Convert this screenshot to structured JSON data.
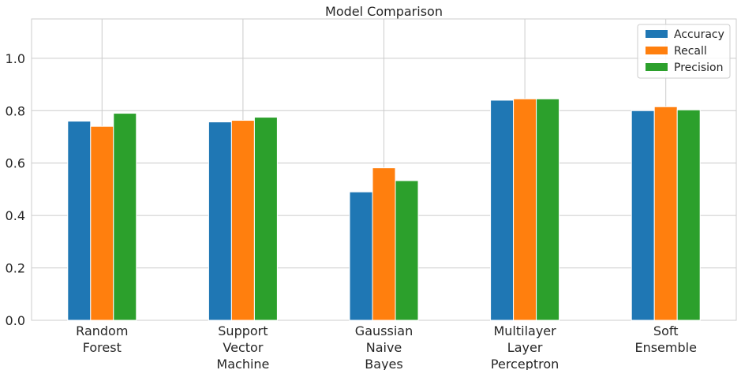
{
  "chart_data": {
    "type": "bar",
    "title": "Model Comparison",
    "xlabel": "",
    "ylabel": "",
    "categories": [
      [
        "Random",
        "Forest"
      ],
      [
        "Support",
        "Vector",
        "Machine"
      ],
      [
        "Gaussian",
        "Naive",
        "Bayes"
      ],
      [
        "Multilayer",
        "Layer",
        "Perceptron"
      ],
      [
        "Soft",
        "Ensemble"
      ]
    ],
    "series": [
      {
        "name": "Accuracy",
        "color": "#1f77b4",
        "values": [
          0.76,
          0.757,
          0.49,
          0.84,
          0.8
        ]
      },
      {
        "name": "Recall",
        "color": "#ff7f0e",
        "values": [
          0.74,
          0.763,
          0.582,
          0.845,
          0.815
        ]
      },
      {
        "name": "Precision",
        "color": "#2ca02c",
        "values": [
          0.79,
          0.775,
          0.533,
          0.845,
          0.803
        ]
      }
    ],
    "ylim": [
      0,
      1.15
    ],
    "yticks": [
      0.0,
      0.2,
      0.4,
      0.6,
      0.8,
      1.0
    ],
    "ytick_labels": [
      "0.0",
      "0.2",
      "0.4",
      "0.6",
      "0.8",
      "1.0"
    ],
    "grid": true,
    "legend_position": "top-right"
  }
}
